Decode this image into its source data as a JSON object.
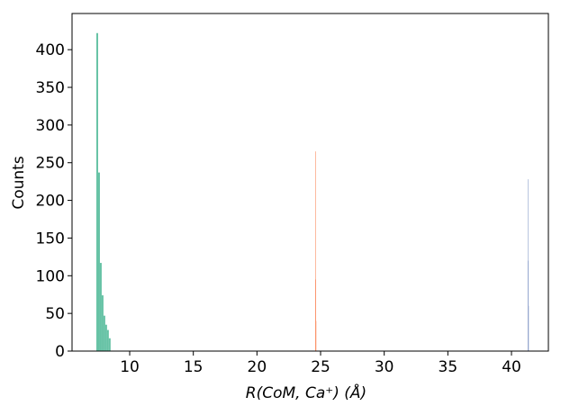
{
  "chart_data": {
    "type": "histogram",
    "xlabel": "R(CoM, Ca⁺)  (Å)",
    "ylabel": "Counts",
    "series": [
      {
        "color": "#66c2a5",
        "bins": [
          7.38,
          7.52,
          7.66,
          7.8,
          7.94,
          8.08,
          8.22,
          8.36,
          8.5
        ],
        "values": [
          422,
          237,
          117,
          74,
          47,
          35,
          28,
          17
        ]
      },
      {
        "color": "#fc8d62",
        "bins": [
          24.58,
          24.6,
          24.62,
          24.64
        ],
        "values": [
          95,
          265,
          40
        ]
      },
      {
        "color": "#8da0cb",
        "bins": [
          41.28,
          41.3,
          41.32,
          41.34
        ],
        "values": [
          120,
          228,
          60
        ]
      }
    ],
    "xlim": [
      5.47,
      42.9
    ],
    "xticks": [
      10,
      15,
      20,
      25,
      30,
      35,
      40
    ],
    "ylim": [
      0,
      448
    ],
    "yticks": [
      0,
      50,
      100,
      150,
      200,
      250,
      300,
      350,
      400
    ],
    "grid": false
  }
}
